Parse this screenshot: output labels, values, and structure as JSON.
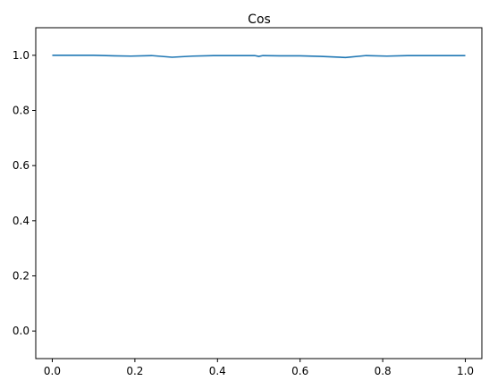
{
  "chart_data": {
    "type": "line",
    "title": "Cos",
    "xlabel": "",
    "ylabel": "",
    "xlim": [
      -0.04,
      1.04
    ],
    "ylim": [
      -0.1,
      1.1
    ],
    "x_ticks": [
      "0.0",
      "0.2",
      "0.4",
      "0.6",
      "0.8",
      "1.0"
    ],
    "y_ticks": [
      "0.0",
      "0.2",
      "0.4",
      "0.6",
      "0.8",
      "1.0"
    ],
    "grid": false,
    "series_color": "#1f77b4",
    "series": [
      {
        "x": [
          0.0,
          0.05,
          0.1,
          0.15,
          0.19,
          0.24,
          0.29,
          0.34,
          0.39,
          0.45,
          0.49,
          0.5,
          0.51,
          0.55,
          0.6,
          0.65,
          0.71,
          0.76,
          0.81,
          0.86,
          0.9,
          0.95,
          1.0
        ],
        "y": [
          1.0,
          1.0,
          1.0,
          0.998,
          0.997,
          0.999,
          0.993,
          0.997,
          0.999,
          0.999,
          0.999,
          0.996,
          0.999,
          0.998,
          0.998,
          0.996,
          0.992,
          0.999,
          0.997,
          0.999,
          0.999,
          0.999,
          0.999
        ]
      }
    ]
  }
}
